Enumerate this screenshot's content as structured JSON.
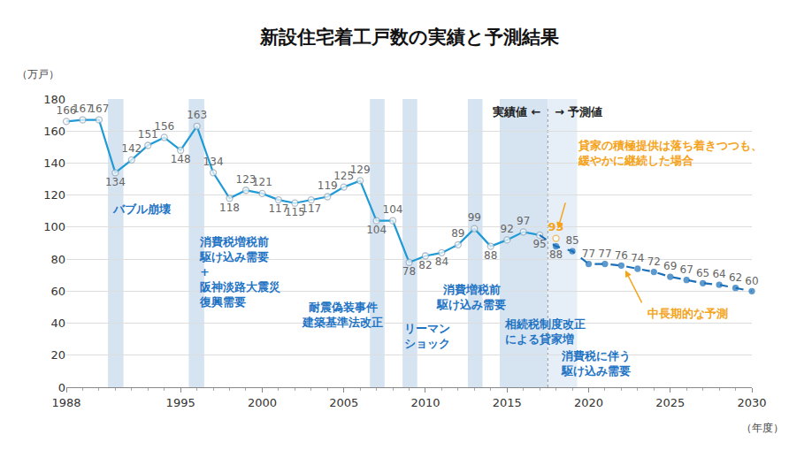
{
  "chart_data": {
    "type": "line",
    "title": "新設住宅着工戸数の実績と予測結果",
    "ylabel": "（万戸）",
    "xlabel": "（年度）",
    "x": [
      1988,
      1989,
      1990,
      1991,
      1992,
      1993,
      1994,
      1995,
      1996,
      1997,
      1998,
      1999,
      2000,
      2001,
      2002,
      2003,
      2004,
      2005,
      2006,
      2007,
      2008,
      2009,
      2010,
      2011,
      2012,
      2013,
      2014,
      2015,
      2016,
      2017,
      2018,
      2019,
      2020,
      2021,
      2022,
      2023,
      2024,
      2025,
      2026,
      2027,
      2028,
      2029,
      2030
    ],
    "series": [
      {
        "color": "#1e9ad6",
        "line_style": "solid",
        "marker": "circle-open",
        "values": [
          166,
          167,
          167,
          134,
          142,
          151,
          156,
          148,
          163,
          134,
          118,
          123,
          121,
          117,
          115,
          117,
          119,
          125,
          129,
          104,
          104,
          78,
          82,
          84,
          89,
          99,
          88,
          92,
          97,
          95,
          null,
          null,
          null,
          null,
          null,
          null,
          null,
          null,
          null,
          null,
          null,
          null,
          null
        ]
      },
      {
        "color": "#1a6fb8",
        "line_style": "dash",
        "marker": "circle",
        "values": [
          null,
          null,
          null,
          null,
          null,
          null,
          null,
          null,
          null,
          null,
          null,
          null,
          null,
          null,
          null,
          null,
          null,
          null,
          null,
          null,
          null,
          null,
          null,
          null,
          null,
          null,
          null,
          null,
          null,
          95,
          88,
          85,
          77,
          77,
          76,
          74,
          72,
          69,
          67,
          65,
          64,
          62,
          60
        ]
      },
      {
        "color": "#f5a31a",
        "line_style": "solid",
        "marker": "circle-open",
        "values": [
          null,
          null,
          null,
          null,
          null,
          null,
          null,
          null,
          null,
          null,
          null,
          null,
          null,
          null,
          null,
          null,
          null,
          null,
          null,
          null,
          null,
          null,
          null,
          null,
          null,
          null,
          null,
          null,
          null,
          null,
          93,
          null,
          null,
          null,
          null,
          null,
          null,
          null,
          null,
          null,
          null,
          null,
          null
        ]
      }
    ],
    "xlim": [
      1988,
      2030
    ],
    "ylim": [
      0,
      180
    ],
    "xticks": [
      1988,
      1995,
      2000,
      2005,
      2010,
      2015,
      2020,
      2025,
      2030
    ],
    "yticks": [
      0,
      20,
      40,
      60,
      80,
      100,
      120,
      140,
      160,
      180
    ],
    "grid": true,
    "data_labels": true,
    "events": [
      {
        "start": 1990.55,
        "end": 1991.5,
        "label": [
          "バブル崩壊"
        ]
      },
      {
        "start": 1995.5,
        "end": 1996.45,
        "label": [
          "消費税増税前",
          "駆け込み需要",
          "+",
          "阪神淡路大震災",
          "復興需要"
        ]
      },
      {
        "start": 2006.6,
        "end": 2007.5,
        "label": [
          "耐震偽装事件",
          "建築基準法改正"
        ]
      },
      {
        "start": 2008.6,
        "end": 2009.5,
        "label": [
          "リーマン",
          "ショック"
        ]
      },
      {
        "start": 2012.6,
        "end": 2013.5,
        "label": [
          "消費増税前",
          "駆け込み需要"
        ]
      },
      {
        "start": 2014.55,
        "end": 2017.5,
        "label": [
          "相続税制度改正",
          "による貸家増"
        ]
      },
      {
        "start": 2017.5,
        "end": 2019.3,
        "label": [
          "消費税に伴う",
          "駆け込み需要"
        ]
      }
    ],
    "divider": {
      "x": 2017.5,
      "left": "実績値 ←",
      "right": "→ 予測値"
    },
    "annotations": [
      {
        "text": [
          "貸家の積極提供は落ち着きつつも、",
          "緩やかに継続した場合"
        ],
        "color": "#f5a31a"
      },
      {
        "text": [
          "中長期的な予測"
        ],
        "color": "#f5a31a"
      }
    ]
  }
}
